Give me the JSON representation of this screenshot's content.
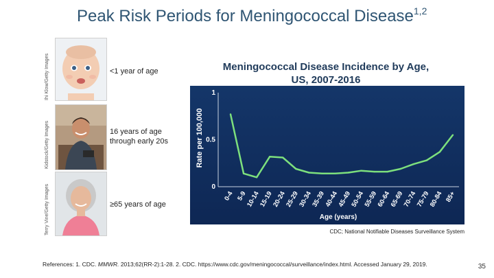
{
  "slide": {
    "title": "Peak Risk Periods for Meningococcal Disease",
    "title_superscript": "1,2",
    "page_number": "35"
  },
  "photo_credits": [
    "Ihi Klow/Getty Images",
    "Kidstock/Getty Images",
    "Terry Vine/Getty Images"
  ],
  "age_groups": [
    {
      "line1": "<1 year of age",
      "line2": ""
    },
    {
      "line1": "16 years of age",
      "line2": "through early 20s"
    },
    {
      "line1": "≥65 years of age",
      "line2": ""
    }
  ],
  "chart_title": {
    "line1": "Meningococcal Disease Incidence by Age,",
    "line2": "US, 2007-2016"
  },
  "chart_data": {
    "type": "line",
    "title": "Meningococcal Disease Incidence by Age, US, 2007-2016",
    "xlabel": "Age (years)",
    "ylabel": "Rate per 100,000",
    "categories": [
      "0-4",
      "5-9",
      "10-14",
      "15-19",
      "20-24",
      "25-29",
      "30-34",
      "35-39",
      "40-44",
      "45-49",
      "50-54",
      "55-59",
      "60-64",
      "65-69",
      "70-74",
      "75-79",
      "80-84",
      "85+"
    ],
    "values": [
      0.77,
      0.14,
      0.1,
      0.32,
      0.31,
      0.19,
      0.15,
      0.14,
      0.14,
      0.15,
      0.17,
      0.16,
      0.16,
      0.19,
      0.24,
      0.28,
      0.37,
      0.55
    ],
    "y_ticks": [
      "1",
      "0.5",
      "0"
    ],
    "ylim": [
      0,
      1
    ],
    "line_color": "#7de07d",
    "background_color": "#143669"
  },
  "source": "CDC; National Notifiable Diseases Surveillance System",
  "references": {
    "prefix": "References: 1. CDC. ",
    "journal": "MMWR.",
    "rest": " 2013;62(RR-2):1-28. 2. CDC. https://www.cdc.gov/meningococcal/surveillance/index.html. Accessed January 29, 2019."
  }
}
